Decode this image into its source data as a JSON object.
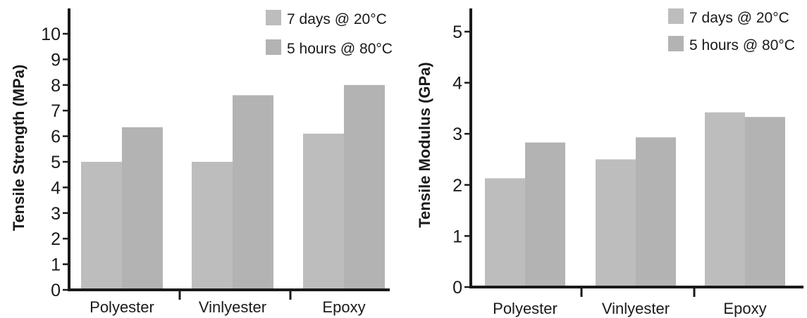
{
  "chart_data": [
    {
      "type": "bar",
      "categories": [
        "Polyester",
        "Vinlyester",
        "Epoxy"
      ],
      "ylabel": "Tensile Strength (MPa)",
      "xlabel": "",
      "ylim": [
        0,
        10
      ],
      "yticks": [
        0,
        1,
        2,
        3,
        4,
        5,
        6,
        7,
        8,
        9,
        10
      ],
      "legend_position": "top-right",
      "series": [
        {
          "name": "7 days @ 20°C",
          "values": [
            5.0,
            5.0,
            6.1
          ],
          "color": "#bdbdbd"
        },
        {
          "name": "5 hours @ 80°C",
          "values": [
            6.35,
            7.6,
            8.0
          ],
          "color": "#b3b3b3"
        }
      ]
    },
    {
      "type": "bar",
      "categories": [
        "Polyester",
        "Vinlyester",
        "Epoxy"
      ],
      "ylabel": "Tensile Modulus (GPa)",
      "xlabel": "",
      "ylim": [
        0,
        5
      ],
      "yticks": [
        0,
        1,
        2,
        3,
        4,
        5
      ],
      "legend_position": "top-right",
      "series": [
        {
          "name": "7 days @ 20°C",
          "values": [
            2.13,
            2.5,
            3.42
          ],
          "color": "#bdbdbd"
        },
        {
          "name": "5 hours @ 80°C",
          "values": [
            2.83,
            2.93,
            3.33
          ],
          "color": "#b3b3b3"
        }
      ]
    }
  ]
}
